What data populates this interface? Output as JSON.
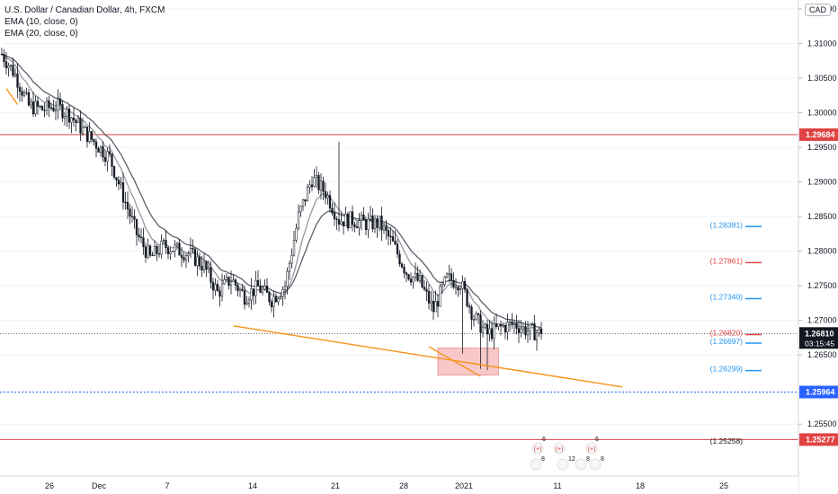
{
  "legend": {
    "title": "U.S. Dollar / Canadian Dollar, 4h, FXCM",
    "ema10": "EMA (10, close, 0)",
    "ema20": "EMA (20, close, 0)"
  },
  "currency_badge": "CAD",
  "colors": {
    "bull": "#ffffff",
    "bear": "#131722",
    "ema10": "#9598a1",
    "ema20": "#5d606b",
    "trend": "#f7931a",
    "resist": "#e04343",
    "support": "#2962ff",
    "blue_label": "#2196f3",
    "red_label": "#e04343",
    "zone_fill": "#f4b6b6"
  },
  "chart_data": {
    "type": "candlestick",
    "symbol": "USDCAD",
    "timeframe": "4h",
    "ylim": [
      1.2475,
      1.3163
    ],
    "x_ticks": [
      "26",
      "Dec",
      "7",
      "14",
      "21",
      "28",
      "2021",
      "11",
      "18",
      "25"
    ],
    "y_ticks": [
      "1.31500",
      "1.31000",
      "1.30500",
      "1.30000",
      "1.29500",
      "1.29000",
      "1.28500",
      "1.28000",
      "1.27500",
      "1.27000",
      "1.26500",
      "1.25500"
    ],
    "current_price": "1.26810",
    "countdown": "03:15:45",
    "horizontal_lines": [
      {
        "price": 1.29684,
        "label": "1.29684",
        "style": "solid",
        "color": "red"
      },
      {
        "price": 1.25964,
        "label": "1.25964",
        "style": "dotted",
        "color": "blue"
      },
      {
        "price": 1.25277,
        "label": "1.25277",
        "style": "solid",
        "color": "red"
      }
    ],
    "price_levels": [
      {
        "price": 1.28381,
        "label": "(1.28381)",
        "color": "blue"
      },
      {
        "price": 1.27861,
        "label": "(1.27861)",
        "color": "red"
      },
      {
        "price": 1.2734,
        "label": "(1.27340)",
        "color": "blue"
      },
      {
        "price": 1.2682,
        "label": "(1.26820)",
        "color": "red"
      },
      {
        "price": 1.26697,
        "label": "(1.26697)",
        "color": "blue"
      },
      {
        "price": 1.26299,
        "label": "(1.26299)",
        "color": "blue"
      },
      {
        "price": 1.25258,
        "label": "(1.25258)",
        "color": "dark"
      }
    ],
    "anchors": [
      [
        0,
        1.3085
      ],
      [
        6,
        1.3055
      ],
      [
        12,
        1.301
      ],
      [
        18,
        1.3005
      ],
      [
        24,
        1.301
      ],
      [
        30,
        1.2998
      ],
      [
        36,
        1.2975
      ],
      [
        42,
        1.2955
      ],
      [
        48,
        1.2935
      ],
      [
        54,
        1.288
      ],
      [
        60,
        1.2825
      ],
      [
        66,
        1.279
      ],
      [
        72,
        1.2808
      ],
      [
        78,
        1.2802
      ],
      [
        84,
        1.2795
      ],
      [
        90,
        1.2778
      ],
      [
        96,
        1.274
      ],
      [
        102,
        1.276
      ],
      [
        108,
        1.2735
      ],
      [
        114,
        1.2748
      ],
      [
        120,
        1.273
      ],
      [
        126,
        1.275
      ],
      [
        132,
        1.285
      ],
      [
        138,
        1.2905
      ],
      [
        144,
        1.2885
      ],
      [
        150,
        1.2845
      ],
      [
        156,
        1.2845
      ],
      [
        162,
        1.284
      ],
      [
        168,
        1.284
      ],
      [
        174,
        1.281
      ],
      [
        180,
        1.277
      ],
      [
        186,
        1.2755
      ],
      [
        192,
        1.2715
      ],
      [
        198,
        1.276
      ],
      [
        204,
        1.2755
      ],
      [
        210,
        1.2705
      ],
      [
        216,
        1.268
      ],
      [
        222,
        1.269
      ],
      [
        228,
        1.2695
      ],
      [
        234,
        1.2685
      ],
      [
        240,
        1.2681
      ]
    ],
    "trendlines": [
      {
        "from": [
          103,
          1.2692
        ],
        "to": [
          205,
          1.264
        ]
      },
      {
        "from": [
          190,
          1.2662
        ],
        "to": [
          213,
          1.2619
        ]
      },
      {
        "from": [
          2,
          1.3035
        ],
        "to": [
          7,
          1.3012
        ]
      }
    ],
    "zone": {
      "from_bar": 194,
      "to_bar": 221,
      "top": 1.266,
      "bottom": 1.2621
    },
    "events": {
      "row1": [
        "(+)",
        "(+)",
        "(+)"
      ],
      "row2": [
        "8",
        "12",
        "8",
        "8"
      ],
      "row2_numbers_top": [
        "6",
        "6"
      ]
    }
  }
}
